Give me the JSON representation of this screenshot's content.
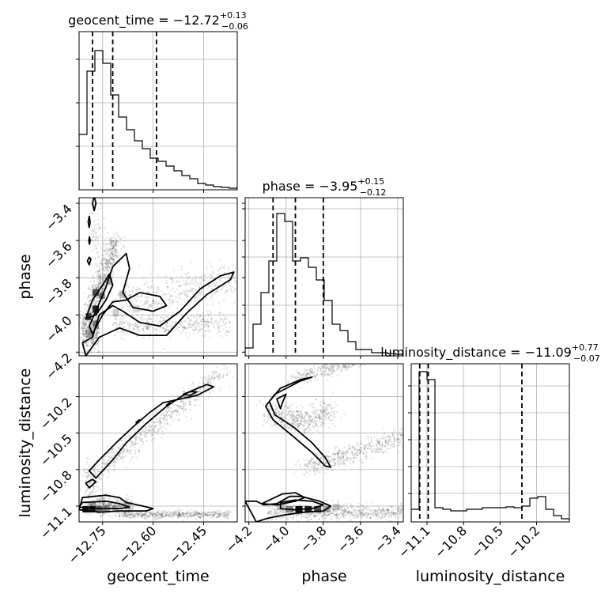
{
  "chart_data": {
    "type": "corner",
    "parameters": [
      "geocent_time",
      "phase",
      "luminosity_distance"
    ],
    "panel_titles": [
      {
        "text": "geocent_time = −12.72",
        "sup": "+0.13",
        "sub": "−0.06"
      },
      {
        "text": "phase = −3.95",
        "sup": "+0.15",
        "sub": "−0.12"
      },
      {
        "text": "luminosity_distance = −11.09",
        "sup": "+0.77",
        "sub": "−0.07"
      }
    ],
    "axis_labels": {
      "x": [
        "geocent_time",
        "phase",
        "luminosity_distance"
      ],
      "y": [
        "phase",
        "luminosity_distance"
      ]
    },
    "ranges": {
      "geocent_time": [
        -12.82,
        -12.35
      ],
      "phase": [
        -4.22,
        -3.37
      ],
      "luminosity_distance": [
        -11.23,
        -9.93
      ]
    },
    "ticks": {
      "geocent_time": {
        "values": [
          -12.75,
          -12.6,
          -12.45
        ],
        "labels": [
          "−12.75",
          "−12.60",
          "−12.45"
        ]
      },
      "phase_x": {
        "values": [
          -4.2,
          -4.0,
          -3.8,
          -3.6,
          -3.4
        ],
        "labels": [
          "−4.2",
          "−4.0",
          "−3.8",
          "−3.6",
          "−3.4"
        ]
      },
      "phase_y": {
        "values": [
          -4.2,
          -4.0,
          -3.8,
          -3.6,
          -3.4
        ],
        "labels": [
          "−4.2",
          "−4.0",
          "−3.8",
          "−3.6",
          "−3.4"
        ]
      },
      "luminosity_distance": {
        "values": [
          -11.1,
          -10.8,
          -10.5,
          -10.2
        ],
        "labels": [
          "−11.1",
          "−10.8",
          "−10.5",
          "−10.2"
        ]
      }
    },
    "quantiles": {
      "geocent_time": [
        -12.78,
        -12.72,
        -12.59
      ],
      "phase": [
        -4.07,
        -3.95,
        -3.8
      ],
      "luminosity_distance": [
        -11.16,
        -11.09,
        -10.32
      ]
    },
    "histograms": {
      "geocent_time": [
        0.35,
        0.75,
        0.88,
        0.8,
        0.6,
        0.46,
        0.38,
        0.31,
        0.26,
        0.2,
        0.18,
        0.15,
        0.12,
        0.09,
        0.07,
        0.04,
        0.03,
        0.02,
        0.015,
        0.01
      ],
      "phase": [
        0.05,
        0.2,
        0.4,
        0.6,
        0.9,
        0.85,
        0.6,
        0.62,
        0.56,
        0.48,
        0.35,
        0.2,
        0.16,
        0.09,
        0.04,
        0.04,
        0.02,
        0.02,
        0.015,
        0.01
      ],
      "luminosity_distance": [
        0.08,
        0.95,
        0.9,
        0.09,
        0.08,
        0.07,
        0.07,
        0.08,
        0.08,
        0.09,
        0.09,
        0.09,
        0.095,
        0.09,
        0.1,
        0.15,
        0.16,
        0.08,
        0.04,
        0.02
      ]
    },
    "grid": true,
    "contour_levels": 3
  }
}
